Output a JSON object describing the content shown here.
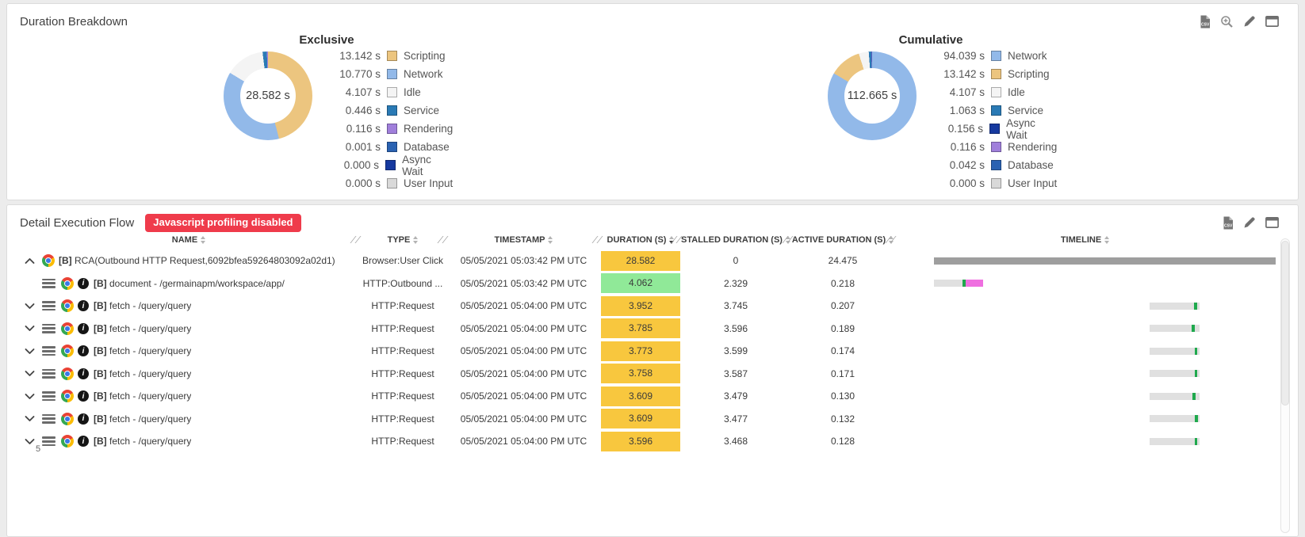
{
  "breakdown": {
    "title": "Duration Breakdown",
    "toolbar": [
      "csv-export",
      "zoom-in",
      "edit",
      "maximize"
    ]
  },
  "chart_data": [
    {
      "type": "pie",
      "title": "Exclusive",
      "center_label": "28.582 s",
      "unit": "s",
      "legend_position": "right",
      "slices": [
        {
          "label": "Scripting",
          "seconds": 13.142,
          "color": "#ecc57f"
        },
        {
          "label": "Network",
          "seconds": 10.77,
          "color": "#92b9e9"
        },
        {
          "label": "Idle",
          "seconds": 4.107,
          "color": "#f4f4f4"
        },
        {
          "label": "Service",
          "seconds": 0.446,
          "color": "#2a7ab5"
        },
        {
          "label": "Rendering",
          "seconds": 0.116,
          "color": "#a07fdb"
        },
        {
          "label": "Database",
          "seconds": 0.001,
          "color": "#2a62b2"
        },
        {
          "label": "Async Wait",
          "seconds": 0.0,
          "color": "#16399f"
        },
        {
          "label": "User Input",
          "seconds": 0.0,
          "color": "#d9d9d9"
        }
      ]
    },
    {
      "type": "pie",
      "title": "Cumulative",
      "center_label": "112.665 s",
      "unit": "s",
      "legend_position": "right",
      "slices": [
        {
          "label": "Network",
          "seconds": 94.039,
          "color": "#92b9e9"
        },
        {
          "label": "Scripting",
          "seconds": 13.142,
          "color": "#ecc57f"
        },
        {
          "label": "Idle",
          "seconds": 4.107,
          "color": "#f4f4f4"
        },
        {
          "label": "Service",
          "seconds": 1.063,
          "color": "#2a7ab5"
        },
        {
          "label": "Async Wait",
          "seconds": 0.156,
          "color": "#16399f"
        },
        {
          "label": "Rendering",
          "seconds": 0.116,
          "color": "#a07fdb"
        },
        {
          "label": "Database",
          "seconds": 0.042,
          "color": "#2a62b2"
        },
        {
          "label": "User Input",
          "seconds": 0.0,
          "color": "#d9d9d9"
        }
      ]
    }
  ],
  "flow": {
    "title": "Detail Execution Flow",
    "badge": "Javascript profiling disabled",
    "toolbar": [
      "csv-export",
      "edit",
      "maximize"
    ],
    "table": {
      "duration_colors": {
        "high": "#f8c73e",
        "ok": "#90e998"
      },
      "timeline_colors": {
        "track": "#9e9e9e",
        "bar": "#e0e0e0",
        "active": "#1fa94d",
        "render": "#ef6fe0"
      },
      "columns": [
        {
          "label": "NAME",
          "sort": "none",
          "resize": true
        },
        {
          "label": "TYPE",
          "sort": "none",
          "resize": true
        },
        {
          "label": "TIMESTAMP",
          "sort": "none",
          "resize": true
        },
        {
          "label": "DURATION (S)",
          "sort": "desc",
          "resize": true
        },
        {
          "label": "STALLED DURATION (S)",
          "sort": "none",
          "resize": true
        },
        {
          "label": "ACTIVE DURATION (S)",
          "sort": "none",
          "resize": true
        },
        {
          "label": "TIMELINE",
          "sort": "none",
          "resize": false
        }
      ],
      "rows": [
        {
          "caret": "up",
          "menu": false,
          "info": false,
          "prefix": "[B]",
          "name": "RCA(Outbound HTTP Request,6092bfea59264803092a02d1)",
          "type": "Browser:User Click",
          "timestamp": "05/05/2021 05:03:42 PM UTC",
          "duration": "28.582",
          "duration_level": "high",
          "stalled": "0",
          "active": "24.475",
          "timeline": {
            "left_pct": 0,
            "width_pct": 100,
            "segments": [
              {
                "color": "#9e9e9e",
                "pct": 100
              }
            ]
          }
        },
        {
          "caret": "none",
          "menu": true,
          "info": true,
          "prefix": "[B]",
          "name": "document - /germainapm/workspace/app/",
          "type": "HTTP:Outbound ...",
          "timestamp": "05/05/2021 05:03:42 PM UTC",
          "duration": "4.062",
          "duration_level": "ok",
          "stalled": "2.329",
          "active": "0.218",
          "timeline": {
            "left_pct": 0,
            "width_pct": 14.4,
            "segments": [
              {
                "color": "#e0e0e0",
                "pct": 58
              },
              {
                "color": "#1fa94d",
                "pct": 7
              },
              {
                "color": "#ef6fe0",
                "pct": 35
              }
            ]
          }
        },
        {
          "caret": "down",
          "menu": true,
          "info": true,
          "prefix": "[B]",
          "name": "fetch - /query/query",
          "type": "HTTP:Request",
          "timestamp": "05/05/2021 05:04:00 PM UTC",
          "duration": "3.952",
          "duration_level": "high",
          "stalled": "3.745",
          "active": "0.207",
          "timeline": {
            "left_pct": 63.1,
            "width_pct": 14.6,
            "segments": [
              {
                "color": "#e0e0e0",
                "pct": 89
              },
              {
                "color": "#1fa94d",
                "pct": 6
              },
              {
                "color": "#e0e0e0",
                "pct": 5
              }
            ]
          }
        },
        {
          "caret": "down",
          "menu": true,
          "info": true,
          "prefix": "[B]",
          "name": "fetch - /query/query",
          "type": "HTTP:Request",
          "timestamp": "05/05/2021 05:04:00 PM UTC",
          "duration": "3.785",
          "duration_level": "high",
          "stalled": "3.596",
          "active": "0.189",
          "timeline": {
            "left_pct": 63.1,
            "width_pct": 14.6,
            "segments": [
              {
                "color": "#e0e0e0",
                "pct": 85
              },
              {
                "color": "#1fa94d",
                "pct": 6
              },
              {
                "color": "#e0e0e0",
                "pct": 9
              }
            ]
          }
        },
        {
          "caret": "down",
          "menu": true,
          "info": true,
          "prefix": "[B]",
          "name": "fetch - /query/query",
          "type": "HTTP:Request",
          "timestamp": "05/05/2021 05:04:00 PM UTC",
          "duration": "3.773",
          "duration_level": "high",
          "stalled": "3.599",
          "active": "0.174",
          "timeline": {
            "left_pct": 63.1,
            "width_pct": 14.6,
            "segments": [
              {
                "color": "#e0e0e0",
                "pct": 90
              },
              {
                "color": "#1fa94d",
                "pct": 6
              },
              {
                "color": "#e0e0e0",
                "pct": 4
              }
            ]
          }
        },
        {
          "caret": "down",
          "menu": true,
          "info": true,
          "prefix": "[B]",
          "name": "fetch - /query/query",
          "type": "HTTP:Request",
          "timestamp": "05/05/2021 05:04:00 PM UTC",
          "duration": "3.758",
          "duration_level": "high",
          "stalled": "3.587",
          "active": "0.171",
          "timeline": {
            "left_pct": 63.1,
            "width_pct": 14.6,
            "segments": [
              {
                "color": "#e0e0e0",
                "pct": 90
              },
              {
                "color": "#1fa94d",
                "pct": 6
              },
              {
                "color": "#e0e0e0",
                "pct": 4
              }
            ]
          }
        },
        {
          "caret": "down",
          "menu": true,
          "info": true,
          "prefix": "[B]",
          "name": "fetch - /query/query",
          "type": "HTTP:Request",
          "timestamp": "05/05/2021 05:04:00 PM UTC",
          "duration": "3.609",
          "duration_level": "high",
          "stalled": "3.479",
          "active": "0.130",
          "timeline": {
            "left_pct": 63.1,
            "width_pct": 14.6,
            "segments": [
              {
                "color": "#e0e0e0",
                "pct": 86
              },
              {
                "color": "#1fa94d",
                "pct": 6
              },
              {
                "color": "#e0e0e0",
                "pct": 8
              }
            ]
          }
        },
        {
          "caret": "down",
          "menu": true,
          "info": true,
          "prefix": "[B]",
          "name": "fetch - /query/query",
          "type": "HTTP:Request",
          "timestamp": "05/05/2021 05:04:00 PM UTC",
          "duration": "3.609",
          "duration_level": "high",
          "stalled": "3.477",
          "active": "0.132",
          "timeline": {
            "left_pct": 63.1,
            "width_pct": 14.6,
            "segments": [
              {
                "color": "#e0e0e0",
                "pct": 91
              },
              {
                "color": "#1fa94d",
                "pct": 6
              },
              {
                "color": "#e0e0e0",
                "pct": 3
              }
            ]
          }
        },
        {
          "caret": "down",
          "menu": true,
          "info": true,
          "prefix": "[B]",
          "name": "fetch - /query/query",
          "type": "HTTP:Request",
          "timestamp": "05/05/2021 05:04:00 PM UTC",
          "duration": "3.596",
          "duration_level": "high",
          "stalled": "3.468",
          "active": "0.128",
          "timeline": {
            "left_pct": 63.1,
            "width_pct": 14.6,
            "segments": [
              {
                "color": "#e0e0e0",
                "pct": 90
              },
              {
                "color": "#1fa94d",
                "pct": 6
              },
              {
                "color": "#e0e0e0",
                "pct": 4
              }
            ]
          }
        }
      ],
      "page_indicator": "5"
    }
  }
}
